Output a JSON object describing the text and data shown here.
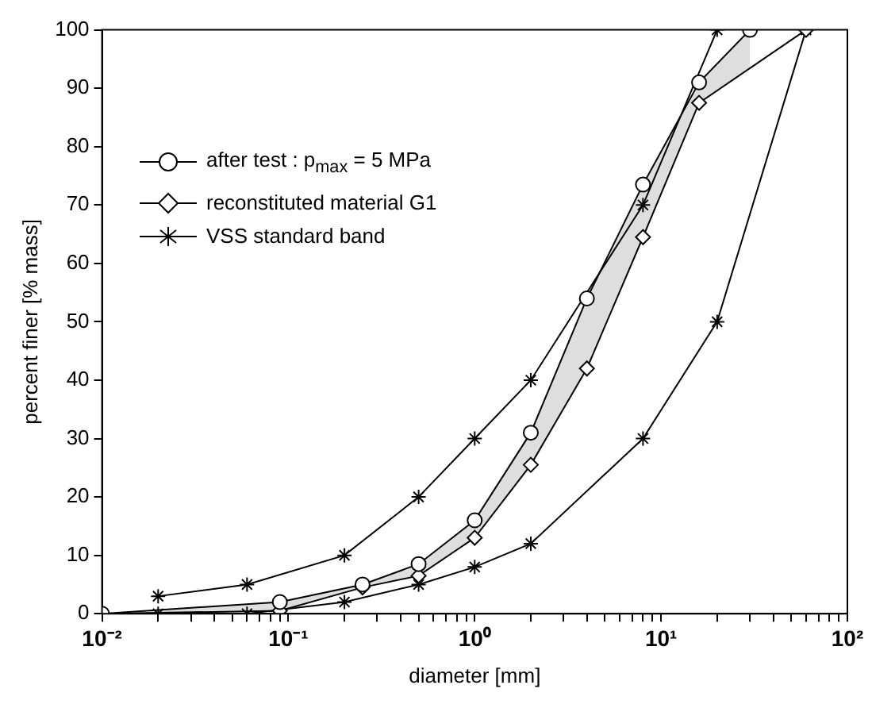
{
  "chart_data": {
    "type": "line",
    "xlabel": "diameter [mm]",
    "ylabel": "percent finer [% mass]",
    "log": "x",
    "grid": false,
    "legend": "top left",
    "line_style": "solid",
    "xlim": [
      0.01,
      100
    ],
    "ylim": [
      0,
      100
    ],
    "xticks": [
      {
        "value": 0.01,
        "label": "10⁻²"
      },
      {
        "value": 0.02,
        "label": null
      },
      {
        "value": 0.03,
        "label": null
      },
      {
        "value": 0.04,
        "label": null
      },
      {
        "value": 0.05,
        "label": null
      },
      {
        "value": 0.06,
        "label": null
      },
      {
        "value": 0.07,
        "label": null
      },
      {
        "value": 0.08,
        "label": null
      },
      {
        "value": 0.09,
        "label": null
      },
      {
        "value": 0.1,
        "label": "10⁻¹"
      },
      {
        "value": 0.2,
        "label": null
      },
      {
        "value": 0.3,
        "label": null
      },
      {
        "value": 0.4,
        "label": null
      },
      {
        "value": 0.5,
        "label": null
      },
      {
        "value": 0.6,
        "label": null
      },
      {
        "value": 0.7,
        "label": null
      },
      {
        "value": 0.8,
        "label": null
      },
      {
        "value": 0.9,
        "label": null
      },
      {
        "value": 1,
        "label": "10⁰"
      },
      {
        "value": 2,
        "label": null
      },
      {
        "value": 3,
        "label": null
      },
      {
        "value": 4,
        "label": null
      },
      {
        "value": 5,
        "label": null
      },
      {
        "value": 6,
        "label": null
      },
      {
        "value": 7,
        "label": null
      },
      {
        "value": 8,
        "label": null
      },
      {
        "value": 9,
        "label": null
      },
      {
        "value": 10,
        "label": "10¹"
      },
      {
        "value": 20,
        "label": null
      },
      {
        "value": 30,
        "label": null
      },
      {
        "value": 40,
        "label": null
      },
      {
        "value": 50,
        "label": null
      },
      {
        "value": 60,
        "label": null
      },
      {
        "value": 70,
        "label": null
      },
      {
        "value": 80,
        "label": null
      },
      {
        "value": 90,
        "label": null
      },
      {
        "value": 100,
        "label": "10²"
      }
    ],
    "yticks": [
      0,
      10,
      20,
      30,
      40,
      50,
      60,
      70,
      80,
      90,
      100
    ],
    "series": [
      {
        "name": "after test  : p$_{max}$ = 5 MPa",
        "color": "#000000",
        "marker": "circle",
        "x": [
          0.01,
          0.09,
          0.25,
          0.5,
          1,
          2,
          4,
          8,
          16,
          30
        ],
        "values": [
          0,
          2,
          5,
          8.5,
          16,
          31,
          54,
          73.5,
          91,
          100
        ]
      },
      {
        "name": "reconstituted material G1",
        "color": "#000000",
        "marker": "diamond",
        "x": [
          0.01,
          0.09,
          0.25,
          0.5,
          1,
          2,
          4,
          8,
          16,
          60
        ],
        "values": [
          0,
          0.5,
          4.5,
          6.5,
          13,
          25.5,
          42,
          64.5,
          87.5,
          100
        ]
      },
      {
        "name": "VSS standard band",
        "color": "#000000",
        "marker": "cross",
        "x": [
          0.02,
          0.06,
          0.2,
          0.5,
          1,
          2,
          8,
          20
        ],
        "values": [
          3,
          5,
          10,
          20,
          30,
          40,
          70,
          100
        ]
      },
      {
        "color": "#000000",
        "marker": "cross",
        "x": [
          0.02,
          0.06,
          0.2,
          0.5,
          1,
          2,
          8,
          20,
          60
        ],
        "values": [
          0,
          0,
          2,
          5,
          8,
          12,
          30,
          50,
          100
        ]
      }
    ]
  }
}
